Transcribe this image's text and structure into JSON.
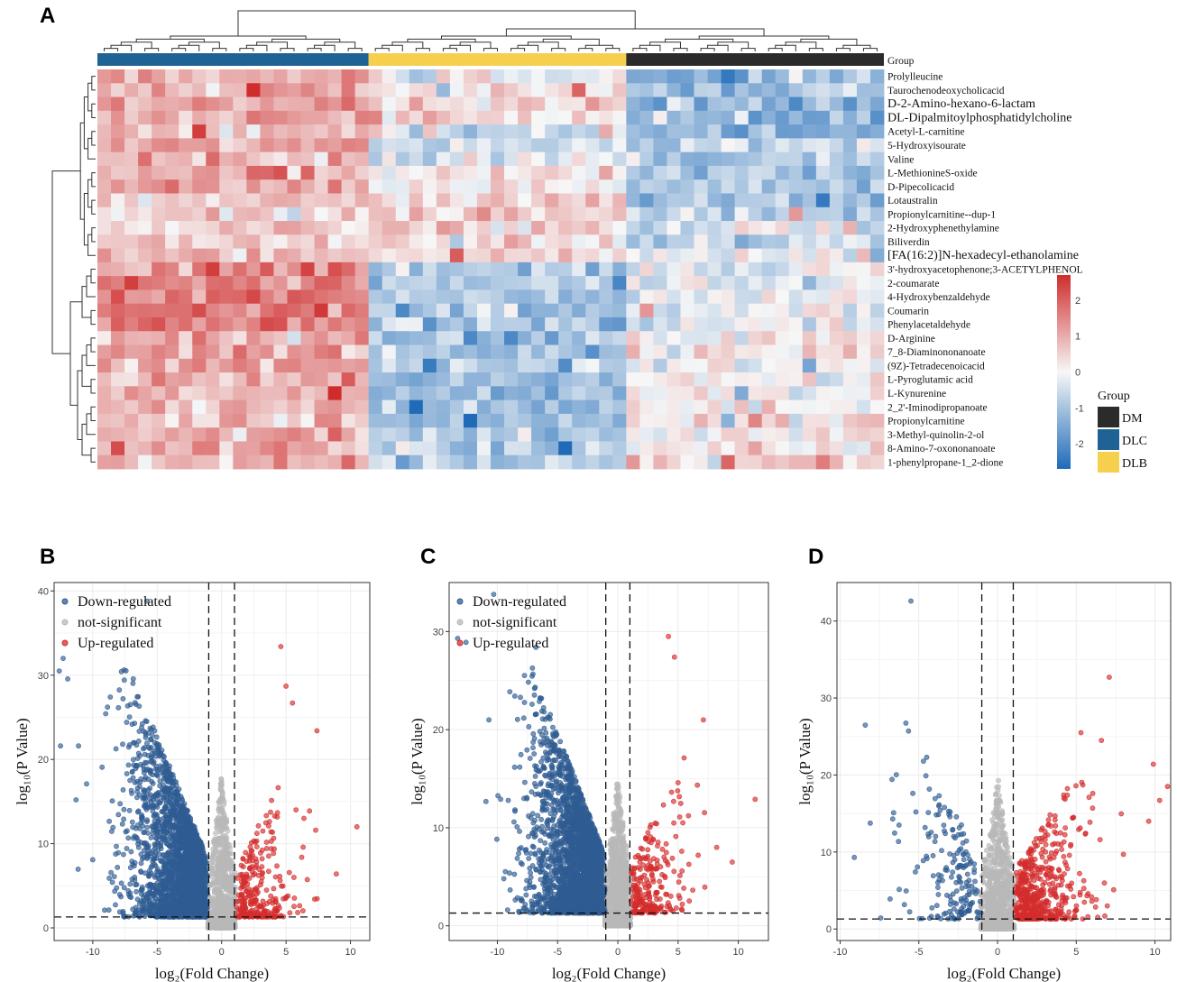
{
  "panel_letters": {
    "a": "A",
    "b": "B",
    "c": "C",
    "d": "D"
  },
  "colors": {
    "down": "#2f5c92",
    "up": "#d42c2c",
    "ns": "#b8b8b8",
    "heat_high": "#cf2d2d",
    "heat_mid": "#f7f7f7",
    "heat_low": "#1f6bb8",
    "group_dm": "#2b2b2b",
    "group_dlc": "#1e6394",
    "group_dlb": "#f6cf4d"
  },
  "chart_data": [
    {
      "type": "heatmap",
      "id": "A",
      "group_bar_label": "Group",
      "groups": [
        {
          "name": "DLC",
          "count": 20
        },
        {
          "name": "DLB",
          "count": 19
        },
        {
          "name": "DM",
          "count": 19
        }
      ],
      "legend_title": "Group",
      "legend_order": [
        "DM",
        "DLC",
        "DLB"
      ],
      "color_scale": {
        "min": -2.7,
        "max": 2.7,
        "ticks": [
          2,
          1,
          0,
          -1,
          -2
        ]
      },
      "rows": [
        {
          "name": "Prolylleucine",
          "pattern": [
            0.9,
            -0.05,
            -1.2
          ],
          "cluster": "a"
        },
        {
          "name": "Taurochenodeoxycholicacid",
          "pattern": [
            1.0,
            0.2,
            -1.1
          ],
          "cluster": "a"
        },
        {
          "name": "D-2-Amino-hexano-6-lactam",
          "pattern": [
            1.0,
            0.25,
            -1.3
          ],
          "cluster": "a",
          "big": true
        },
        {
          "name": "DL-Dipalmitoylphosphatidylcholine",
          "pattern": [
            1.1,
            0.35,
            -1.2
          ],
          "cluster": "a",
          "big": true
        },
        {
          "name": "Acetyl-L-carnitine",
          "pattern": [
            0.9,
            -0.4,
            -1.1
          ],
          "cluster": "a"
        },
        {
          "name": "5-Hydroxyisourate",
          "pattern": [
            0.9,
            -0.5,
            -0.9
          ],
          "cluster": "a"
        },
        {
          "name": "Valine",
          "pattern": [
            0.8,
            -0.2,
            -1.0
          ],
          "cluster": "a"
        },
        {
          "name": "L-MethionineS-oxide",
          "pattern": [
            0.8,
            0.15,
            -1.0
          ],
          "cluster": "a"
        },
        {
          "name": "D-Pipecolicacid",
          "pattern": [
            1.0,
            0.1,
            -0.9
          ],
          "cluster": "a"
        },
        {
          "name": "Lotaustralin",
          "pattern": [
            0.7,
            0.35,
            -1.0
          ],
          "cluster": "a"
        },
        {
          "name": "Propionylcarnitine--dup-1",
          "pattern": [
            0.4,
            0.55,
            -0.6
          ],
          "cluster": "a"
        },
        {
          "name": "2-Hydroxyphenethylamine",
          "pattern": [
            0.6,
            0.6,
            -0.5
          ],
          "cluster": "a"
        },
        {
          "name": "Biliverdin",
          "pattern": [
            0.6,
            0.4,
            -0.6
          ],
          "cluster": "a"
        },
        {
          "name": "[FA(16:2)]N-hexadecyl-ethanolamine",
          "pattern": [
            0.7,
            0.5,
            -0.3
          ],
          "cluster": "a",
          "big": true
        },
        {
          "name": "3'-hydroxyacetophenone;3-ACETYLPHENOL",
          "pattern": [
            1.4,
            -0.9,
            -0.2
          ],
          "cluster": "b"
        },
        {
          "name": "2-coumarate",
          "pattern": [
            1.6,
            -0.9,
            -0.3
          ],
          "cluster": "b"
        },
        {
          "name": "4-Hydroxybenzaldehyde",
          "pattern": [
            1.7,
            -1.0,
            -0.2
          ],
          "cluster": "b"
        },
        {
          "name": "Coumarin",
          "pattern": [
            1.7,
            -0.9,
            -0.3
          ],
          "cluster": "b"
        },
        {
          "name": "Phenylacetaldehyde",
          "pattern": [
            1.6,
            -0.9,
            -0.2
          ],
          "cluster": "b"
        },
        {
          "name": "D-Arginine",
          "pattern": [
            1.0,
            -1.0,
            0.2
          ],
          "cluster": "c"
        },
        {
          "name": "7_8-Diaminononanoate",
          "pattern": [
            1.0,
            -1.1,
            0.3
          ],
          "cluster": "c"
        },
        {
          "name": "(9Z)-Tetradecenoicacid",
          "pattern": [
            1.2,
            -0.6,
            0.1
          ],
          "cluster": "c"
        },
        {
          "name": "L-Pyroglutamic acid",
          "pattern": [
            1.0,
            -1.0,
            0.1
          ],
          "cluster": "c"
        },
        {
          "name": "L-Kynurenine",
          "pattern": [
            0.9,
            -1.0,
            0.0
          ],
          "cluster": "c"
        },
        {
          "name": "2_2'-Iminodipropanoate",
          "pattern": [
            0.8,
            -1.1,
            0.1
          ],
          "cluster": "c"
        },
        {
          "name": "Propionylcarnitine",
          "pattern": [
            0.8,
            -1.1,
            0.3
          ],
          "cluster": "c"
        },
        {
          "name": "3-Methyl-quinolin-2-ol",
          "pattern": [
            0.9,
            -0.9,
            0.2
          ],
          "cluster": "c"
        },
        {
          "name": "8-Amino-7-oxononanoate",
          "pattern": [
            1.1,
            -0.8,
            0.2
          ],
          "cluster": "c"
        },
        {
          "name": "1-phenylpropane-1_2-dione",
          "pattern": [
            0.9,
            -0.9,
            0.3
          ],
          "cluster": "c"
        }
      ]
    },
    {
      "type": "scatter",
      "id": "B",
      "xlabel": "log₂(Fold Change)",
      "ylabel": "log₁₀(P Value)",
      "xlim": [
        -13,
        11.5
      ],
      "ylim": [
        -1.5,
        41
      ],
      "xticks": [
        -10,
        -5,
        0,
        5,
        10
      ],
      "yticks": [
        0,
        10,
        20,
        30,
        40
      ],
      "fc_threshold": 1,
      "p_threshold": 1.3,
      "legend": [
        "Down-regulated",
        "not-significant",
        "Up-regulated"
      ],
      "counts": {
        "down": 2600,
        "ns": 900,
        "up": 260
      },
      "outliers_down": [
        [
          -12.6,
          30.5
        ],
        [
          -12.3,
          32.0
        ],
        [
          -5.8,
          38.8
        ],
        [
          -11.1,
          21.6
        ],
        [
          -12.5,
          21.6
        ],
        [
          -11.3,
          15.2
        ]
      ],
      "outliers_up": [
        [
          4.6,
          33.4
        ],
        [
          5.0,
          28.7
        ],
        [
          5.5,
          26.7
        ],
        [
          7.4,
          23.4
        ],
        [
          10.5,
          12.0
        ],
        [
          8.9,
          6.4
        ],
        [
          7.3,
          11.6
        ]
      ]
    },
    {
      "type": "scatter",
      "id": "C",
      "xlabel": "log₂(Fold Change)",
      "ylabel": "log₁₀(P Value)",
      "xlim": [
        -14,
        12.5
      ],
      "ylim": [
        -1.5,
        35
      ],
      "xticks": [
        -10,
        -5,
        0,
        5,
        10
      ],
      "yticks": [
        0,
        10,
        20,
        30
      ],
      "fc_threshold": 1,
      "p_threshold": 1.3,
      "legend": [
        "Down-regulated",
        "not-significant",
        "Up-regulated"
      ],
      "counts": {
        "down": 3000,
        "ns": 1000,
        "up": 240
      },
      "outliers_down": [
        [
          -10.3,
          33.8
        ],
        [
          -13.3,
          29.3
        ],
        [
          -12.6,
          28.9
        ],
        [
          -6.8,
          28.4
        ],
        [
          -10.7,
          21.0
        ]
      ],
      "outliers_up": [
        [
          4.2,
          29.5
        ],
        [
          4.7,
          27.4
        ],
        [
          11.4,
          12.9
        ],
        [
          8.2,
          8.0
        ],
        [
          9.5,
          6.5
        ],
        [
          7.1,
          21.0
        ]
      ]
    },
    {
      "type": "scatter",
      "id": "D",
      "xlabel": "log₂(Fold Change)",
      "ylabel": "log₁₀(P Value)",
      "xlim": [
        -10.2,
        11
      ],
      "ylim": [
        -1.5,
        45
      ],
      "xticks": [
        -10,
        -5,
        0,
        5,
        10
      ],
      "yticks": [
        0,
        10,
        20,
        30,
        40
      ],
      "fc_threshold": 1,
      "p_threshold": 1.3,
      "legend": [],
      "counts": {
        "down": 180,
        "ns": 900,
        "up": 500
      },
      "outliers_down": [
        [
          -5.5,
          42.6
        ],
        [
          -9.1,
          9.3
        ],
        [
          -6.6,
          15.1
        ],
        [
          -4.5,
          22.3
        ]
      ],
      "outliers_up": [
        [
          7.1,
          32.7
        ],
        [
          5.3,
          25.5
        ],
        [
          9.9,
          21.4
        ],
        [
          10.3,
          16.7
        ],
        [
          10.8,
          18.5
        ],
        [
          8.0,
          9.7
        ],
        [
          9.6,
          14.0
        ]
      ]
    }
  ]
}
